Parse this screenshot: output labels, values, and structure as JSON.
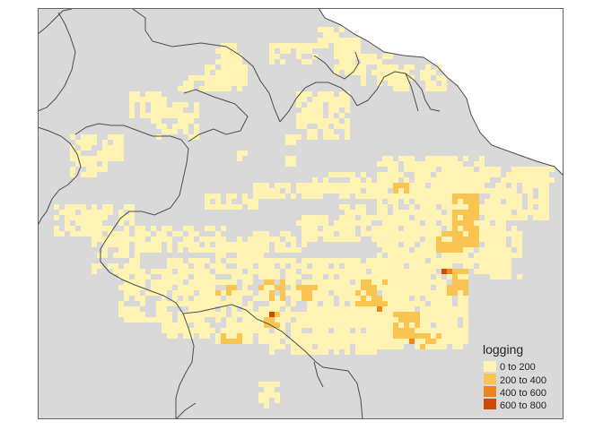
{
  "map": {
    "legend": {
      "title": "logging",
      "classes": [
        {
          "label": "0 to 200",
          "color": "#FFF3B3"
        },
        {
          "label": "200 to 400",
          "color": "#F9C451"
        },
        {
          "label": "400 to 600",
          "color": "#EE861C"
        },
        {
          "label": "600 to 800",
          "color": "#CC4C02"
        }
      ]
    },
    "colors": {
      "land": "#D9D9D9",
      "border": "#4D4D4D",
      "frame": "#666666",
      "ocean": "#FFFFFF"
    }
  }
}
